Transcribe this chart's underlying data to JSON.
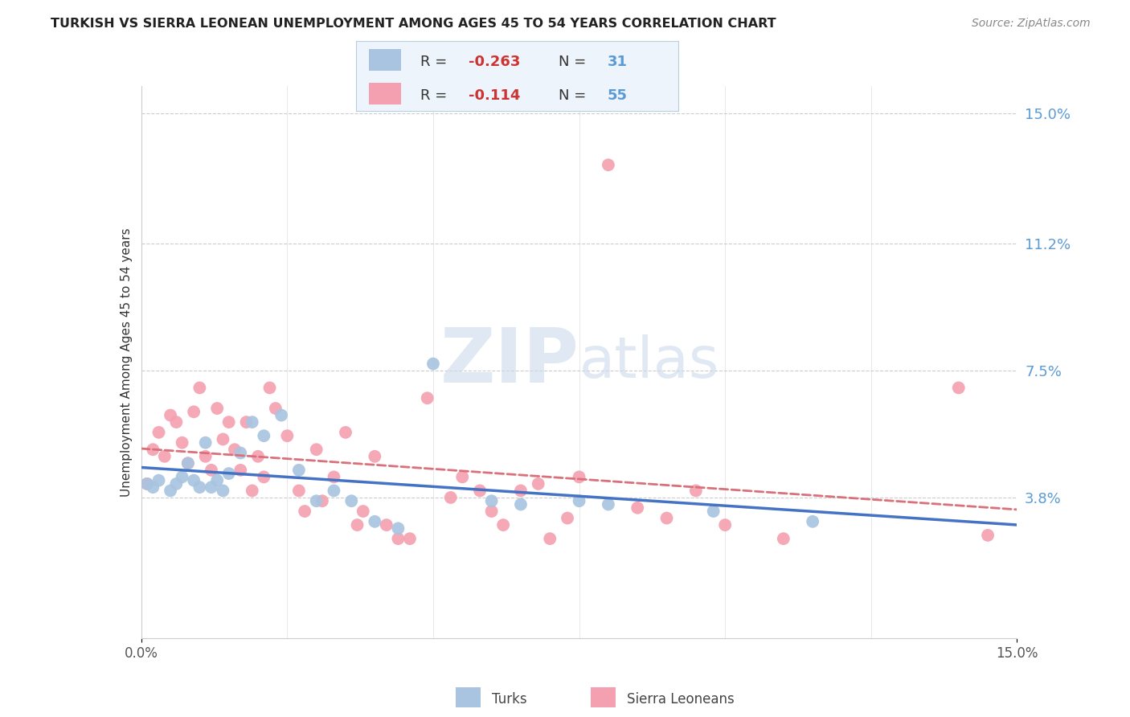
{
  "title": "TURKISH VS SIERRA LEONEAN UNEMPLOYMENT AMONG AGES 45 TO 54 YEARS CORRELATION CHART",
  "source": "Source: ZipAtlas.com",
  "ylabel": "Unemployment Among Ages 45 to 54 years",
  "xlim": [
    0.0,
    0.15
  ],
  "ylim": [
    -0.003,
    0.158
  ],
  "yticks": [
    0.038,
    0.075,
    0.112,
    0.15
  ],
  "ytick_labels": [
    "3.8%",
    "7.5%",
    "11.2%",
    "15.0%"
  ],
  "turks_color": "#a8c4e0",
  "sierraleoneans_color": "#f4a0b0",
  "trend_turks_color": "#4472c4",
  "trend_sierra_color": "#d9707a",
  "R_turks": -0.263,
  "N_turks": 31,
  "R_sierra": -0.114,
  "N_sierra": 55,
  "turks_x": [
    0.001,
    0.002,
    0.003,
    0.005,
    0.006,
    0.007,
    0.008,
    0.009,
    0.01,
    0.011,
    0.012,
    0.013,
    0.014,
    0.015,
    0.017,
    0.019,
    0.021,
    0.024,
    0.027,
    0.03,
    0.033,
    0.036,
    0.04,
    0.044,
    0.05,
    0.06,
    0.065,
    0.075,
    0.08,
    0.098,
    0.115
  ],
  "turks_y": [
    0.042,
    0.041,
    0.043,
    0.04,
    0.042,
    0.044,
    0.048,
    0.043,
    0.041,
    0.054,
    0.041,
    0.043,
    0.04,
    0.045,
    0.051,
    0.06,
    0.056,
    0.062,
    0.046,
    0.037,
    0.04,
    0.037,
    0.031,
    0.029,
    0.077,
    0.037,
    0.036,
    0.037,
    0.036,
    0.034,
    0.031
  ],
  "sierra_x": [
    0.001,
    0.002,
    0.003,
    0.004,
    0.005,
    0.006,
    0.007,
    0.008,
    0.009,
    0.01,
    0.011,
    0.012,
    0.013,
    0.014,
    0.015,
    0.016,
    0.017,
    0.018,
    0.019,
    0.02,
    0.021,
    0.022,
    0.023,
    0.025,
    0.027,
    0.028,
    0.03,
    0.031,
    0.033,
    0.035,
    0.037,
    0.038,
    0.04,
    0.042,
    0.044,
    0.046,
    0.049,
    0.053,
    0.055,
    0.058,
    0.06,
    0.062,
    0.065,
    0.068,
    0.07,
    0.073,
    0.075,
    0.08,
    0.085,
    0.09,
    0.095,
    0.1,
    0.11,
    0.14,
    0.145
  ],
  "sierra_y": [
    0.042,
    0.052,
    0.057,
    0.05,
    0.062,
    0.06,
    0.054,
    0.048,
    0.063,
    0.07,
    0.05,
    0.046,
    0.064,
    0.055,
    0.06,
    0.052,
    0.046,
    0.06,
    0.04,
    0.05,
    0.044,
    0.07,
    0.064,
    0.056,
    0.04,
    0.034,
    0.052,
    0.037,
    0.044,
    0.057,
    0.03,
    0.034,
    0.05,
    0.03,
    0.026,
    0.026,
    0.067,
    0.038,
    0.044,
    0.04,
    0.034,
    0.03,
    0.04,
    0.042,
    0.026,
    0.032,
    0.044,
    0.135,
    0.035,
    0.032,
    0.04,
    0.03,
    0.026,
    0.07,
    0.027
  ],
  "watermark_zip": "ZIP",
  "watermark_atlas": "atlas",
  "background_color": "#ffffff",
  "grid_color": "#cccccc",
  "legend_bg": "#eef4fb",
  "legend_border": "#b8cfe0",
  "text_color_blue": "#5b9bd5",
  "text_color_dark": "#333333",
  "text_color_red": "#cc3333",
  "bottom_legend_turks": "Turks",
  "bottom_legend_sierra": "Sierra Leoneans"
}
